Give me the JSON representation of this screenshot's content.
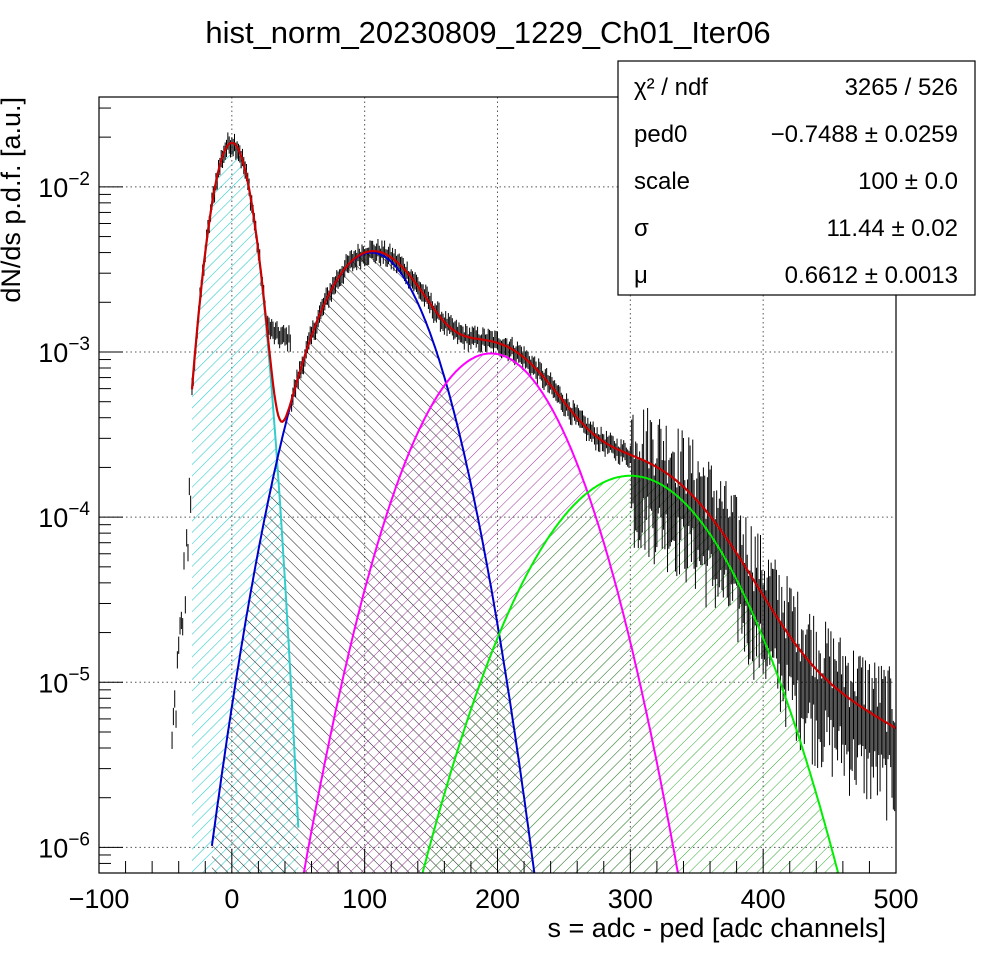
{
  "chart_data": {
    "type": "histogram",
    "title": "hist_norm_20230809_1229_Ch01_Iter06",
    "xlabel": "s = adc - ped [adc channels]",
    "ylabel": "dN/ds p.d.f. [a.u.]",
    "xlim": [
      -100,
      500
    ],
    "ylim": [
      7e-07,
      0.035
    ],
    "yscale": "log",
    "grid": true,
    "x_ticks": [
      "−100",
      "0",
      "100",
      "200",
      "300",
      "400",
      "500"
    ],
    "x_tick_values": [
      -100,
      0,
      100,
      200,
      300,
      400,
      500
    ],
    "y_ticks": [
      {
        "value": 1e-06,
        "base": "10",
        "exp": "−6"
      },
      {
        "value": 1e-05,
        "base": "10",
        "exp": "−5"
      },
      {
        "value": 0.0001,
        "base": "10",
        "exp": "−4"
      },
      {
        "value": 0.001,
        "base": "10",
        "exp": "−3"
      },
      {
        "value": 0.01,
        "base": "10",
        "exp": "−2"
      }
    ],
    "stats": [
      {
        "name": "χ² / ndf",
        "value": "3265 / 526"
      },
      {
        "name": "ped0",
        "value": "−0.7488 ± 0.0259"
      },
      {
        "name": "scale",
        "value": "100 ± 0.0"
      },
      {
        "name": "σ",
        "value": "11.44 ± 0.02"
      },
      {
        "name": "μ",
        "value": "0.6612 ± 0.0013"
      }
    ],
    "components": [
      {
        "color": "#33cccc",
        "peak_x": 0,
        "peak_y": 0.0185,
        "sigma": 11.44,
        "x_start": -30,
        "x_end": 50
      },
      {
        "color": "#0000cc",
        "peak_x": 105,
        "peak_y": 0.004,
        "sigma": 29.5,
        "x_start": -15,
        "x_end": 233
      },
      {
        "color": "#ff00ff",
        "peak_x": 195,
        "peak_y": 0.00098,
        "sigma": 37.0,
        "x_start": 42,
        "x_end": 367
      },
      {
        "color": "#00ee00",
        "peak_x": 300,
        "peak_y": 0.000178,
        "sigma": 47.0,
        "x_start": 123,
        "x_end": 480
      }
    ],
    "fit_curve": {
      "color": "#cc0000",
      "x_start": -30,
      "x_end": 500
    },
    "data_color": "#000000"
  }
}
